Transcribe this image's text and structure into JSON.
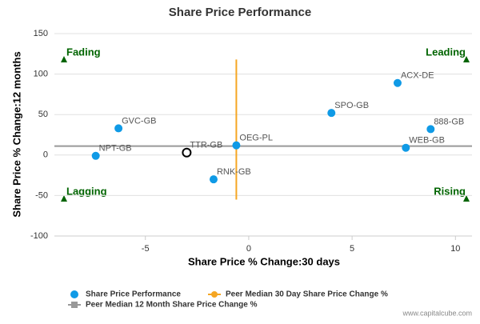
{
  "chart_data": {
    "type": "scatter",
    "title": "Share Price Performance",
    "x_label": "Share Price % Change:30 days",
    "y_label": "Share Price % Change:12 months",
    "xlim": [
      -9.4,
      10.8
    ],
    "ylim": [
      -100,
      150
    ],
    "xticks": [
      -5,
      0,
      5,
      10
    ],
    "yticks": [
      -100,
      -50,
      0,
      50,
      100,
      150
    ],
    "grid": true,
    "annotations": [
      "Fading",
      "Leading",
      "Lagging",
      "Rising"
    ],
    "highlight": "TTR-GB",
    "highlight_color": "#000000",
    "series": [
      {
        "name": "Share Price Performance",
        "color": "#0f9ae6",
        "labels": [
          "GVC-GB",
          "NPT-GB",
          "TTR-GB",
          "OEG-PL",
          "RNK-GB",
          "SPO-GB",
          "ACX-DE",
          "888-GB",
          "WEB-GB"
        ],
        "x": [
          -6.3,
          -7.4,
          -3,
          -0.6,
          -1.7,
          4.0,
          7.2,
          8.8,
          7.6
        ],
        "values": [
          33,
          -1,
          3,
          12,
          -30,
          52,
          89,
          32,
          9
        ]
      },
      {
        "name": "Peer Median 30 Day Share Price Change %",
        "color": "#f5a623",
        "x": [
          -0.6,
          -0.6
        ],
        "values": [
          118,
          -55
        ]
      },
      {
        "name": "Peer Median 12 Month Share Price Change %",
        "color": "#999999",
        "values": 11
      }
    ],
    "footer": "www.capitalcube.com"
  }
}
